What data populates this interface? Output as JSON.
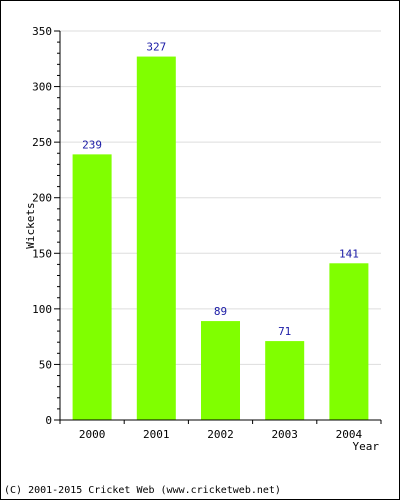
{
  "chart_data": {
    "type": "bar",
    "categories": [
      "2000",
      "2001",
      "2002",
      "2003",
      "2004"
    ],
    "values": [
      239,
      327,
      89,
      71,
      141
    ],
    "data_labels": [
      "239",
      "327",
      "89",
      "71",
      "141"
    ],
    "xlabel": "Year",
    "ylabel": "Wickets",
    "ylim": [
      0,
      350
    ],
    "yticks": [
      0,
      50,
      100,
      150,
      200,
      250,
      300,
      350
    ],
    "ytick_labels": [
      "0",
      "50",
      "100",
      "150",
      "200",
      "250",
      "300",
      "350"
    ],
    "grid": "horizontal",
    "bar_color": "#80ff00",
    "label_color": "#1a1aa6",
    "grid_color": "#dddddd"
  },
  "footer": {
    "copyright": "(C) 2001-2015 Cricket Web (www.cricketweb.net)"
  }
}
